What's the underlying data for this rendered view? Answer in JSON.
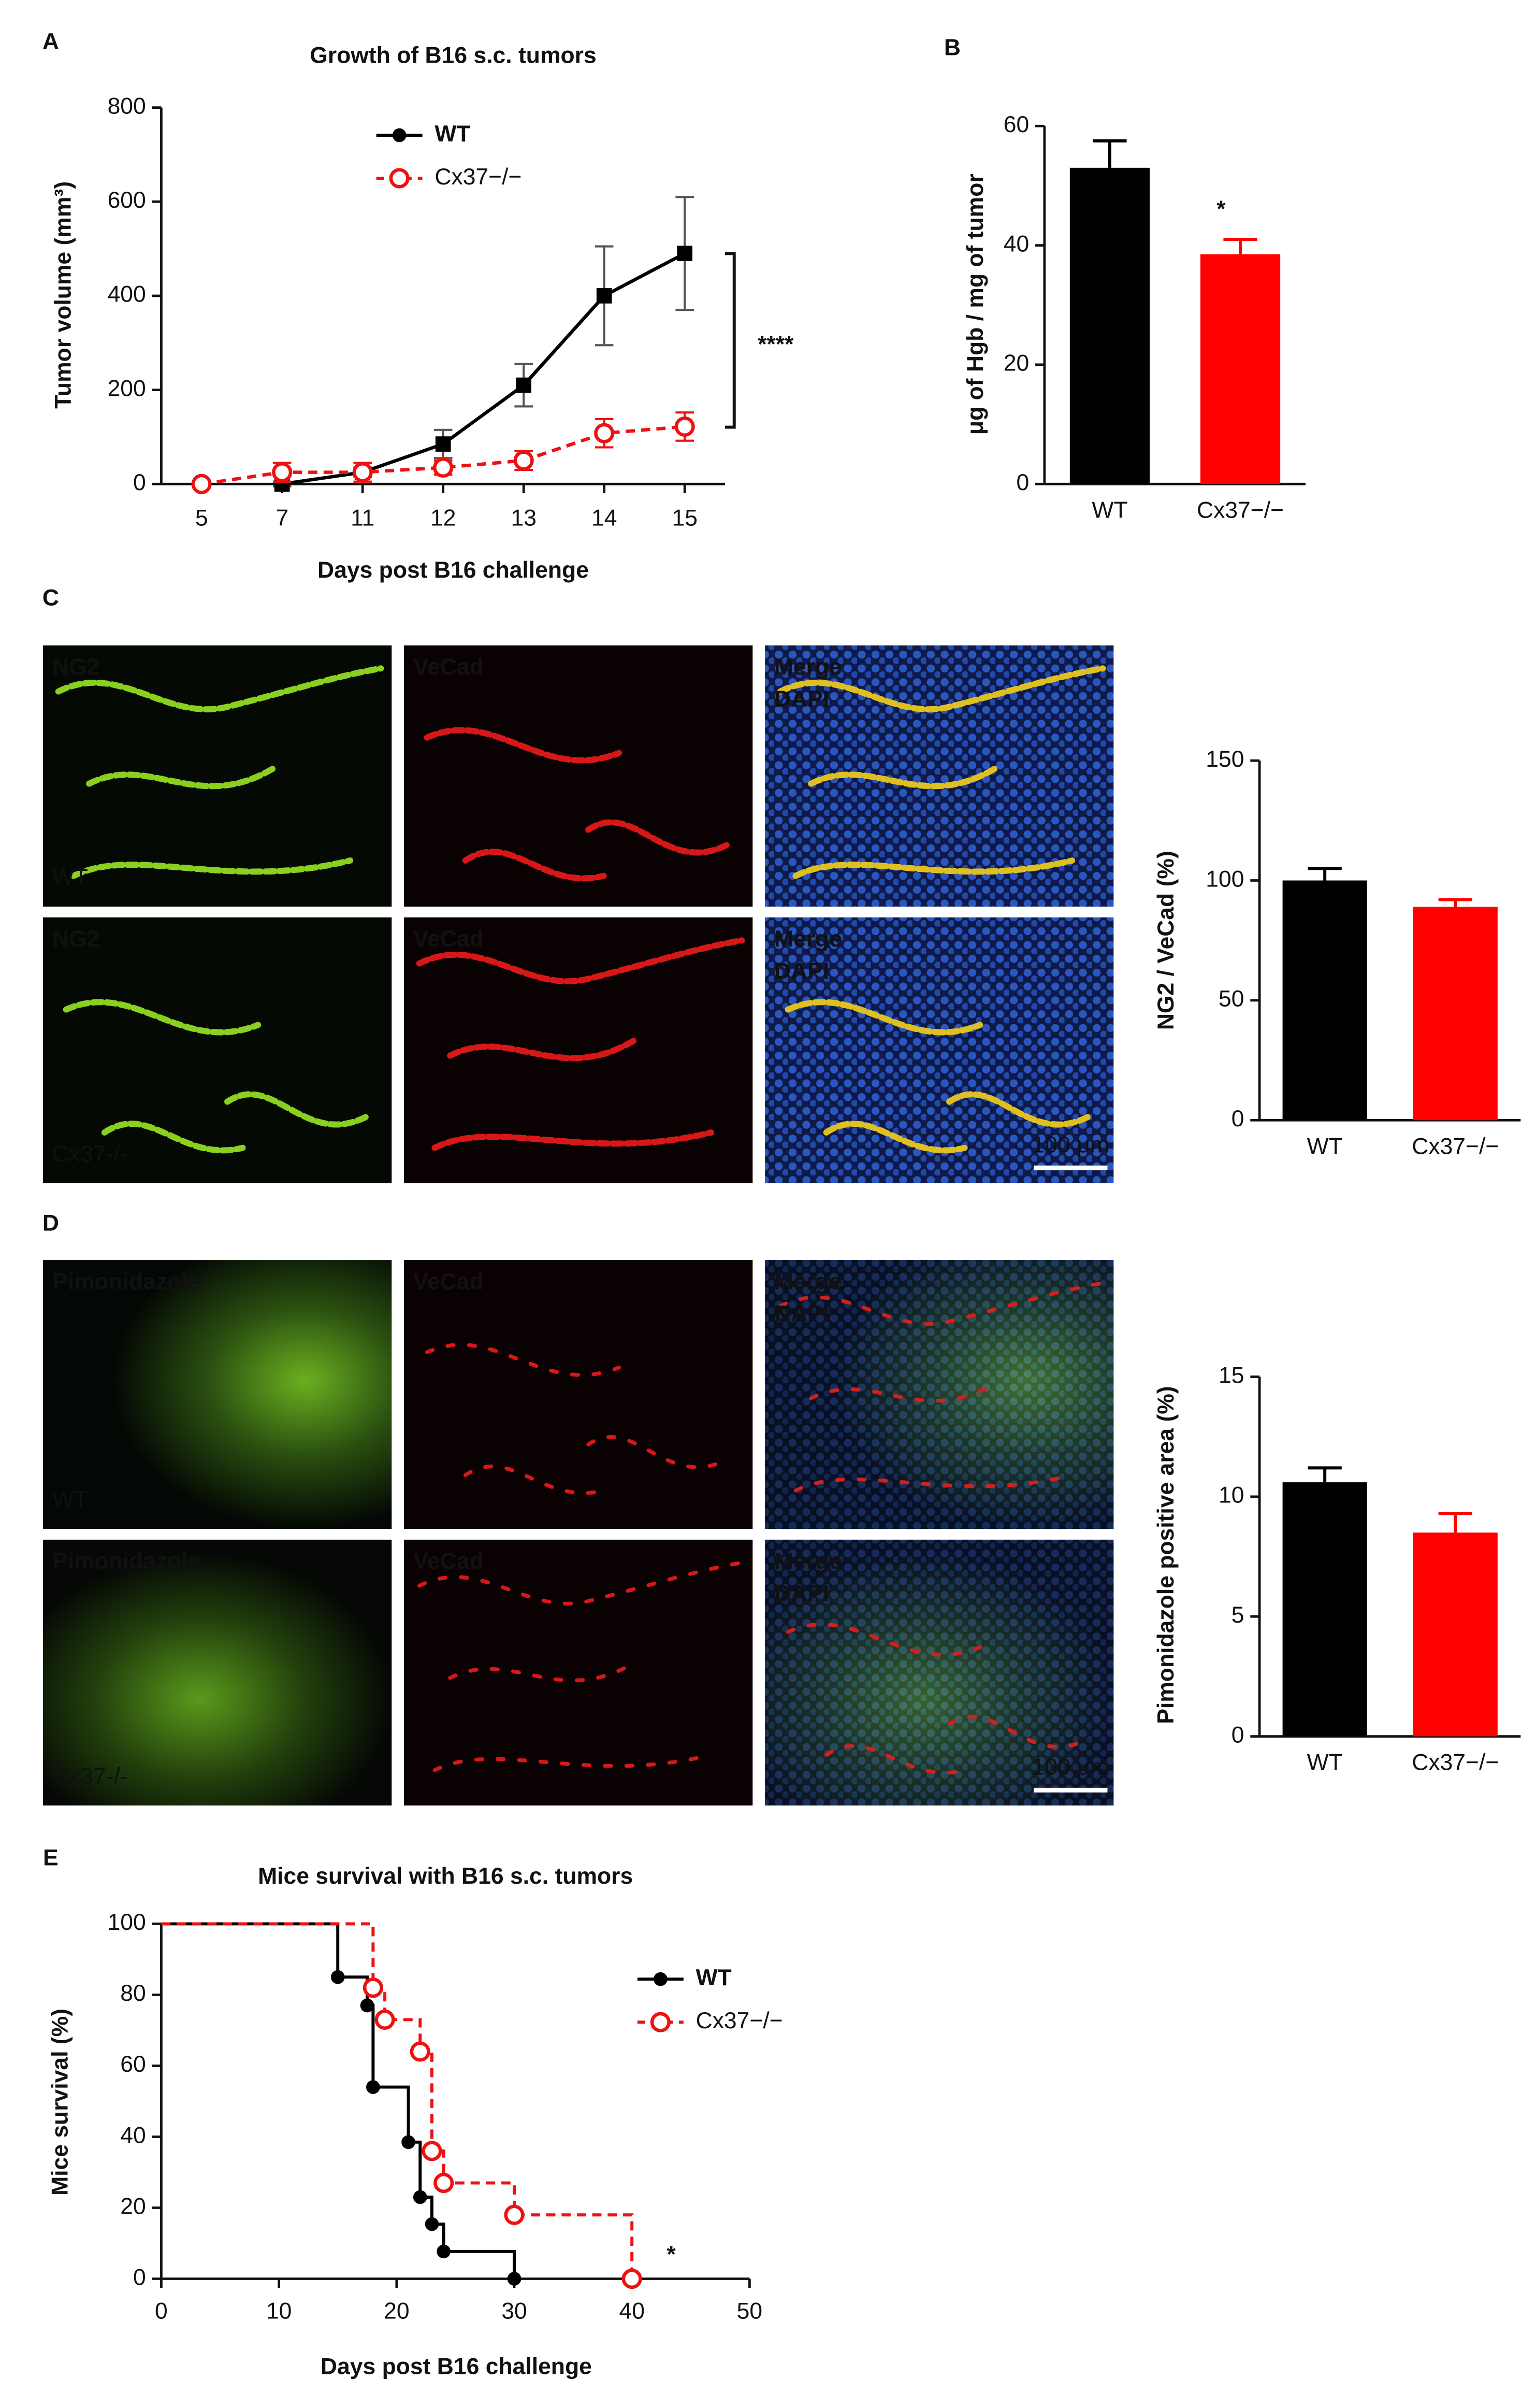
{
  "figure": {
    "panel_letters": [
      "A",
      "B",
      "C",
      "D",
      "E"
    ],
    "micrographs": [
      {
        "rows": [
          {
            "sample": "WT",
            "tiles": [
              [
                "NG2"
              ],
              [
                "VeCad"
              ],
              [
                "Merge",
                "DAPI"
              ]
            ]
          },
          {
            "sample": "Cx37-/-",
            "tiles": [
              [
                "NG2"
              ],
              [
                "VeCad"
              ],
              [
                "Merge",
                "DAPI"
              ]
            ]
          }
        ],
        "scale_bar": "100 μm"
      },
      {
        "rows": [
          {
            "sample": "WT",
            "tiles": [
              [
                "Pimonidazole"
              ],
              [
                "VeCad"
              ],
              [
                "Merge",
                "DAPI"
              ]
            ]
          },
          {
            "sample": "Cx37-/-",
            "tiles": [
              [
                "Pimonidazole"
              ],
              [
                "VeCad"
              ],
              [
                "Merge",
                "DAPI"
              ]
            ]
          }
        ],
        "scale_bar": "100 μm"
      }
    ]
  },
  "chart_data": [
    {
      "type": "line",
      "title": "Growth of B16 s.c. tumors",
      "x_label": "Days post B16 challenge",
      "y_label": "Tumor volume (mm³)",
      "categories": [
        "5",
        "7",
        "11",
        "12",
        "13",
        "14",
        "15"
      ],
      "series": [
        {
          "name": "WT",
          "color": "#000000",
          "marker": "square",
          "dashed": false,
          "values": [
            null,
            0,
            25,
            85,
            210,
            400,
            490
          ],
          "errors": [
            null,
            5,
            10,
            30,
            45,
            105,
            120
          ]
        },
        {
          "name": "Cx37−/−",
          "color": "#ee1111",
          "marker": "open-circle",
          "dashed": true,
          "values": [
            0,
            25,
            25,
            35,
            50,
            108,
            122
          ],
          "errors": [
            null,
            20,
            20,
            15,
            20,
            30,
            30
          ]
        }
      ],
      "ylim": [
        0,
        800
      ],
      "yticks": [
        0,
        200,
        400,
        600,
        800
      ],
      "annotation": "****"
    },
    {
      "type": "bar",
      "y_label": "μg of Hgb / mg of tumor",
      "categories": [
        "WT",
        "Cx37−/−"
      ],
      "values": [
        53,
        38.5
      ],
      "errors": [
        4.5,
        2.5
      ],
      "colors": [
        "#000000",
        "#ff0000"
      ],
      "ylim": [
        0,
        60
      ],
      "yticks": [
        0,
        20,
        40,
        60
      ],
      "annotation": "*"
    },
    {
      "type": "bar",
      "y_label": "NG2 / VeCad (%)",
      "categories": [
        "WT",
        "Cx37−/−"
      ],
      "values": [
        100,
        89
      ],
      "errors": [
        5,
        3
      ],
      "colors": [
        "#000000",
        "#ff0000"
      ],
      "ylim": [
        0,
        150
      ],
      "yticks": [
        0,
        50,
        100,
        150
      ]
    },
    {
      "type": "bar",
      "y_label": "Pimonidazole positive area (%)",
      "categories": [
        "WT",
        "Cx37−/−"
      ],
      "values": [
        10.6,
        8.5
      ],
      "errors": [
        0.6,
        0.8
      ],
      "colors": [
        "#000000",
        "#ff0000"
      ],
      "ylim": [
        0,
        15
      ],
      "yticks": [
        0,
        5,
        10,
        15
      ]
    },
    {
      "type": "step",
      "title": "Mice survival with B16 s.c. tumors",
      "x_label": "Days post B16 challenge",
      "y_label": "Mice survival (%)",
      "series": [
        {
          "name": "WT",
          "color": "#000000",
          "marker": "dot",
          "dashed": false,
          "x": [
            0,
            15,
            17.5,
            18,
            21,
            22,
            23,
            24,
            30
          ],
          "values": [
            100,
            85,
            77,
            54,
            38.5,
            23,
            15.4,
            7.7,
            0
          ]
        },
        {
          "name": "Cx37−/−",
          "color": "#ee1111",
          "marker": "open-circle",
          "dashed": true,
          "x": [
            0,
            18,
            19,
            22,
            23,
            24,
            30,
            40
          ],
          "values": [
            100,
            82,
            73,
            64,
            36,
            27,
            18,
            0
          ]
        }
      ],
      "xlim": [
        0,
        50
      ],
      "xticks": [
        0,
        10,
        20,
        30,
        40,
        50
      ],
      "ylim": [
        0,
        100
      ],
      "yticks": [
        0,
        20,
        40,
        60,
        80,
        100
      ],
      "annotation": "*"
    }
  ]
}
